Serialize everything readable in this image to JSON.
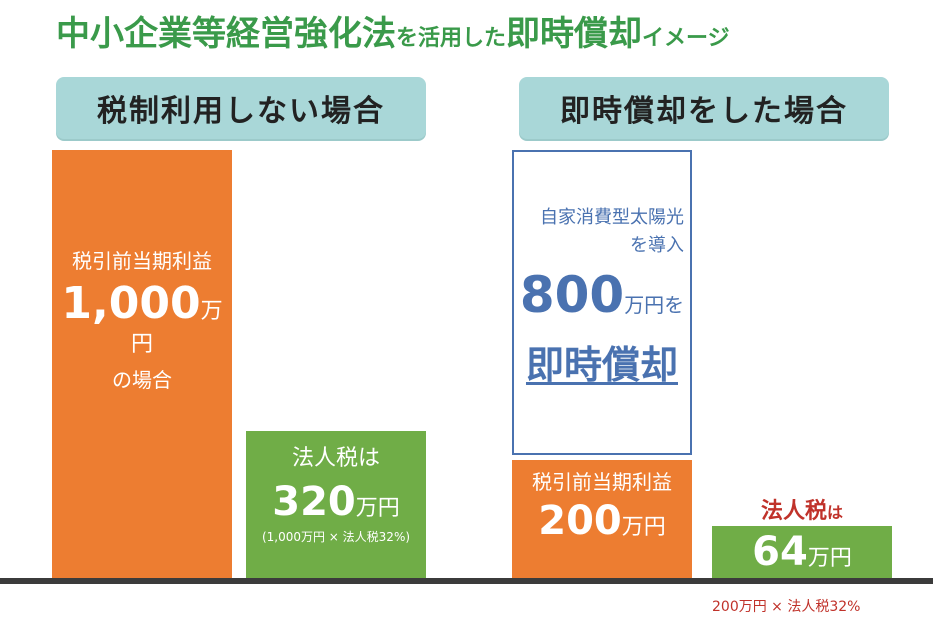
{
  "title": {
    "part1": "中小企業等経営強化法",
    "part2": "を活用した",
    "part3": "即時償却",
    "part4": "イメージ"
  },
  "left_section": {
    "header": "税制利用しない場合",
    "profit_bar": {
      "label": "税引前当期利益",
      "amount": "1,000",
      "unit": "万円",
      "suffix": "の場合"
    },
    "tax_bar": {
      "label": "法人税は",
      "amount": "320",
      "unit": "万円",
      "note": "(1,000万円 × 法人税32%)"
    }
  },
  "right_section": {
    "header": "即時償却をした場合",
    "depreciation_box": {
      "line1": "自家消費型太陽光",
      "line2": "を導入",
      "amount": "800",
      "unit": "万円を",
      "action": "即時償却"
    },
    "profit_bar": {
      "label": "税引前当期利益",
      "amount": "200",
      "unit": "万円"
    },
    "tax_bar": {
      "label_bold": "法人税",
      "label_suffix": "は",
      "amount": "64",
      "unit": "万円",
      "note": "200万円 × 法人税32%"
    }
  },
  "colors": {
    "orange": "#ed7d31",
    "green": "#70ad47",
    "title_green": "#3a9a4a",
    "tab_bg": "#a9d7d8",
    "blue": "#4a72b0",
    "red": "#c0322a"
  }
}
